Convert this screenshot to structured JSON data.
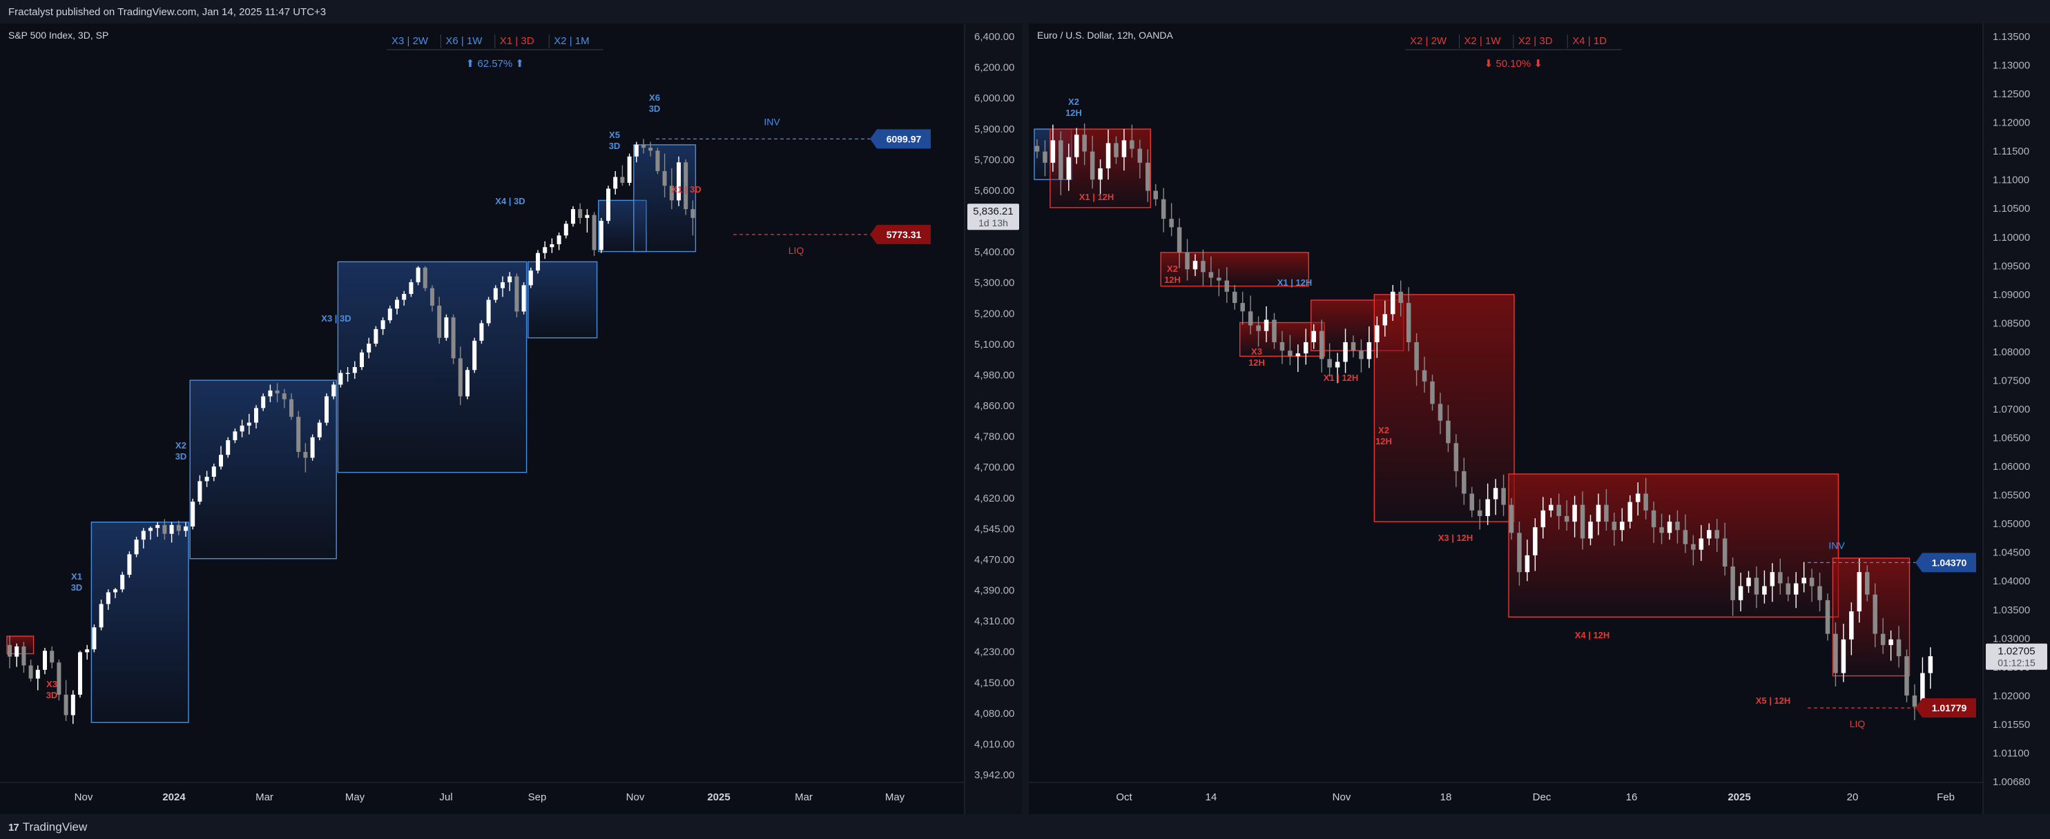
{
  "header": {
    "text": "Fractalyst published on TradingView.com, Jan 14, 2025 11:47 UTC+3"
  },
  "footer": {
    "brand": "TradingView",
    "logo_icon": "tradingview-logo-icon"
  },
  "colors": {
    "bg": "#0b0e17",
    "frame": "#131722",
    "bull": "#4a90e2",
    "bear": "#e53935",
    "navy_fill": "#1d3a6e",
    "red_fill": "#8a0f0f",
    "candle_up": "#ffffff",
    "candle_down": "#8a8a8a",
    "axis_text": "#b2b5be"
  },
  "chart_data": [
    {
      "type": "candlestick",
      "title": "S&P 500 Index, 3D, SP",
      "badges": [
        {
          "text": "X3 | 2W",
          "color": "#4a90e2"
        },
        {
          "text": "X6 | 1W",
          "color": "#4a90e2"
        },
        {
          "text": "X1 | 3D",
          "color": "#e53935"
        },
        {
          "text": "X2 | 1M",
          "color": "#4a90e2"
        }
      ],
      "summary": {
        "text": "⬆ 62.57% ⬆",
        "color": "#4a90e2"
      },
      "y_ticks": [
        "6,400.00",
        "6,200.00",
        "6,000.00",
        "5,900.00",
        "5,700.00",
        "5,600.00",
        "5,500.00",
        "5,400.00",
        "5,300.00",
        "5,200.00",
        "5,100.00",
        "4,980.00",
        "4,860.00",
        "4,780.00",
        "4,700.00",
        "4,620.00",
        "4,545.00",
        "4,470.00",
        "4,390.00",
        "4,310.00",
        "4,230.00",
        "4,150.00",
        "4,080.00",
        "4,010.00",
        "3,942.00"
      ],
      "x_ticks": [
        "Nov",
        "2024",
        "Mar",
        "May",
        "Jul",
        "Sep",
        "Nov",
        "2025",
        "Mar",
        "May"
      ],
      "price_tag": {
        "price": "5,836.21",
        "countdown": "1d 13h"
      },
      "levels": [
        {
          "label": "INV",
          "value": "6099.97",
          "color": "#4a90e2"
        },
        {
          "label": "LIQ",
          "value": "5773.31",
          "color": "#e53935"
        }
      ],
      "annotations": [
        {
          "text": "X3",
          "sub": "3D",
          "color": "#e53935"
        },
        {
          "text": "X1",
          "sub": "3D",
          "color": "#4a90e2"
        },
        {
          "text": "X2",
          "sub": "3D",
          "color": "#4a90e2"
        },
        {
          "text": "X3 | 3D",
          "color": "#4a90e2"
        },
        {
          "text": "X4 | 3D",
          "color": "#4a90e2"
        },
        {
          "text": "X5",
          "sub": "3D",
          "color": "#4a90e2"
        },
        {
          "text": "X6",
          "sub": "3D",
          "color": "#4a90e2"
        },
        {
          "text": "X1 | 3D",
          "color": "#e53935"
        }
      ],
      "candles": [
        [
          4370,
          4400,
          4290,
          4330
        ],
        [
          4330,
          4375,
          4295,
          4365
        ],
        [
          4365,
          4380,
          4275,
          4300
        ],
        [
          4300,
          4320,
          4245,
          4255
        ],
        [
          4255,
          4300,
          4215,
          4285
        ],
        [
          4285,
          4360,
          4270,
          4350
        ],
        [
          4350,
          4365,
          4290,
          4310
        ],
        [
          4310,
          4320,
          4180,
          4200
        ],
        [
          4200,
          4250,
          4110,
          4130
        ],
        [
          4130,
          4215,
          4100,
          4200
        ],
        [
          4200,
          4350,
          4190,
          4345
        ],
        [
          4345,
          4370,
          4320,
          4355
        ],
        [
          4355,
          4440,
          4345,
          4430
        ],
        [
          4430,
          4525,
          4420,
          4510
        ],
        [
          4510,
          4560,
          4490,
          4550
        ],
        [
          4550,
          4565,
          4530,
          4560
        ],
        [
          4560,
          4620,
          4550,
          4610
        ],
        [
          4610,
          4690,
          4600,
          4680
        ],
        [
          4680,
          4740,
          4670,
          4730
        ],
        [
          4730,
          4770,
          4700,
          4760
        ],
        [
          4760,
          4775,
          4730,
          4770
        ],
        [
          4770,
          4790,
          4740,
          4780
        ],
        [
          4780,
          4800,
          4730,
          4750
        ],
        [
          4750,
          4790,
          4720,
          4780
        ],
        [
          4780,
          4795,
          4745,
          4760
        ],
        [
          4760,
          4790,
          4740,
          4775
        ],
        [
          4775,
          4870,
          4765,
          4860
        ],
        [
          4860,
          4950,
          4850,
          4930
        ],
        [
          4930,
          4965,
          4910,
          4945
        ],
        [
          4945,
          4990,
          4930,
          4980
        ],
        [
          4980,
          5050,
          4970,
          5020
        ],
        [
          5020,
          5080,
          5010,
          5070
        ],
        [
          5070,
          5110,
          5060,
          5100
        ],
        [
          5100,
          5140,
          5080,
          5120
        ],
        [
          5120,
          5160,
          5090,
          5130
        ],
        [
          5130,
          5190,
          5110,
          5180
        ],
        [
          5180,
          5230,
          5170,
          5220
        ],
        [
          5220,
          5260,
          5200,
          5240
        ],
        [
          5240,
          5265,
          5200,
          5230
        ],
        [
          5230,
          5245,
          5180,
          5210
        ],
        [
          5210,
          5230,
          5140,
          5150
        ],
        [
          5150,
          5170,
          5010,
          5030
        ],
        [
          5030,
          5060,
          4960,
          5010
        ],
        [
          5010,
          5090,
          5000,
          5080
        ],
        [
          5080,
          5140,
          5070,
          5130
        ],
        [
          5130,
          5230,
          5120,
          5220
        ],
        [
          5220,
          5270,
          5210,
          5260
        ],
        [
          5260,
          5310,
          5250,
          5300
        ],
        [
          5300,
          5320,
          5270,
          5300
        ],
        [
          5300,
          5340,
          5280,
          5320
        ],
        [
          5320,
          5380,
          5310,
          5370
        ],
        [
          5370,
          5420,
          5350,
          5400
        ],
        [
          5400,
          5460,
          5390,
          5450
        ],
        [
          5450,
          5490,
          5430,
          5480
        ],
        [
          5480,
          5530,
          5470,
          5520
        ],
        [
          5520,
          5560,
          5500,
          5550
        ],
        [
          5550,
          5580,
          5530,
          5570
        ],
        [
          5570,
          5620,
          5560,
          5610
        ],
        [
          5610,
          5665,
          5600,
          5660
        ],
        [
          5660,
          5665,
          5580,
          5590
        ],
        [
          5590,
          5600,
          5510,
          5530
        ],
        [
          5530,
          5560,
          5400,
          5420
        ],
        [
          5420,
          5500,
          5410,
          5490
        ],
        [
          5490,
          5500,
          5330,
          5350
        ],
        [
          5350,
          5390,
          5190,
          5220
        ],
        [
          5220,
          5320,
          5210,
          5310
        ],
        [
          5310,
          5420,
          5300,
          5410
        ],
        [
          5410,
          5480,
          5400,
          5470
        ],
        [
          5470,
          5560,
          5460,
          5550
        ],
        [
          5550,
          5600,
          5540,
          5590
        ],
        [
          5590,
          5630,
          5560,
          5610
        ],
        [
          5610,
          5645,
          5580,
          5630
        ],
        [
          5630,
          5640,
          5490,
          5510
        ],
        [
          5510,
          5610,
          5500,
          5600
        ],
        [
          5600,
          5660,
          5590,
          5650
        ],
        [
          5650,
          5720,
          5640,
          5710
        ],
        [
          5710,
          5750,
          5690,
          5730
        ],
        [
          5730,
          5760,
          5710,
          5740
        ],
        [
          5740,
          5780,
          5720,
          5770
        ],
        [
          5770,
          5820,
          5760,
          5810
        ],
        [
          5810,
          5870,
          5800,
          5860
        ],
        [
          5860,
          5880,
          5810,
          5830
        ],
        [
          5830,
          5860,
          5780,
          5840
        ],
        [
          5840,
          5850,
          5700,
          5720
        ],
        [
          5720,
          5830,
          5710,
          5820
        ],
        [
          5820,
          5940,
          5810,
          5930
        ],
        [
          5930,
          5990,
          5910,
          5970
        ],
        [
          5970,
          6010,
          5940,
          5950
        ],
        [
          5950,
          6050,
          5940,
          6040
        ],
        [
          6040,
          6090,
          6020,
          6080
        ],
        [
          6080,
          6100,
          6050,
          6070
        ],
        [
          6070,
          6090,
          6040,
          6060
        ],
        [
          6060,
          6070,
          5980,
          5990
        ],
        [
          5990,
          6050,
          5900,
          5940
        ],
        [
          5940,
          6000,
          5860,
          5890
        ],
        [
          5890,
          6040,
          5870,
          6020
        ],
        [
          6020,
          6030,
          5840,
          5860
        ],
        [
          5860,
          5890,
          5770,
          5830
        ]
      ],
      "zones": [
        {
          "from": 0,
          "to": 3,
          "low": 4340,
          "high": 4400,
          "kind": "bear"
        },
        {
          "from": 12,
          "to": 25,
          "low": 4105,
          "high": 4790,
          "kind": "bull"
        },
        {
          "from": 26,
          "to": 46,
          "low": 4665,
          "high": 5275,
          "kind": "bull"
        },
        {
          "from": 47,
          "to": 73,
          "low": 4960,
          "high": 5680,
          "kind": "bull"
        },
        {
          "from": 74,
          "to": 83,
          "low": 5420,
          "high": 5680,
          "kind": "bull"
        },
        {
          "from": 84,
          "to": 90,
          "low": 5715,
          "high": 5890,
          "kind": "bull"
        },
        {
          "from": 89,
          "to": 97,
          "low": 5715,
          "high": 6080,
          "kind": "bull"
        }
      ]
    },
    {
      "type": "candlestick",
      "title": "Euro / U.S. Dollar, 12h, OANDA",
      "badges": [
        {
          "text": "X2 | 2W",
          "color": "#e53935"
        },
        {
          "text": "X2 | 1W",
          "color": "#e53935"
        },
        {
          "text": "X2 | 3D",
          "color": "#e53935"
        },
        {
          "text": "X4 | 1D",
          "color": "#e53935"
        }
      ],
      "summary": {
        "text": "⬇ 50.10% ⬇",
        "color": "#e53935"
      },
      "y_ticks": [
        "1.13500",
        "1.13000",
        "1.12500",
        "1.12000",
        "1.11500",
        "1.11000",
        "1.10500",
        "1.10000",
        "1.09500",
        "1.09000",
        "1.08500",
        "1.08000",
        "1.07500",
        "1.07000",
        "1.06500",
        "1.06000",
        "1.05500",
        "1.05000",
        "1.04500",
        "1.04000",
        "1.03500",
        "1.03000",
        "1.02500",
        "1.02000",
        "1.01550",
        "1.01100",
        "1.00680"
      ],
      "x_ticks": [
        "Oct",
        "14",
        "Nov",
        "18",
        "Dec",
        "16",
        "2025",
        "20",
        "Feb"
      ],
      "price_tag": {
        "price": "1.02705",
        "countdown": "01:12:15"
      },
      "levels": [
        {
          "label": "INV",
          "value": "1.04370",
          "color": "#4a90e2"
        },
        {
          "label": "LIQ",
          "value": "1.01779",
          "color": "#e53935"
        }
      ],
      "annotations": [
        {
          "text": "X2",
          "sub": "12H",
          "color": "#4a90e2"
        },
        {
          "text": "X1 | 12H",
          "color": "#e53935"
        },
        {
          "text": "X2",
          "sub": "12H",
          "color": "#e53935"
        },
        {
          "text": "X1 | 12H",
          "color": "#4a90e2"
        },
        {
          "text": "X3",
          "sub": "12H",
          "color": "#e53935"
        },
        {
          "text": "X1 | 12H",
          "color": "#e53935"
        },
        {
          "text": "X2",
          "sub": "12H",
          "color": "#e53935"
        },
        {
          "text": "X3 | 12H",
          "color": "#e53935"
        },
        {
          "text": "X4 | 12H",
          "color": "#e53935"
        },
        {
          "text": "X5 | 12H",
          "color": "#e53935"
        }
      ],
      "path": [
        1.117,
        1.115,
        1.119,
        1.112,
        1.116,
        1.12,
        1.117,
        1.112,
        1.114,
        1.1185,
        1.116,
        1.119,
        1.1175,
        1.115,
        1.11,
        1.1085,
        1.105,
        1.1035,
        1.099,
        1.096,
        1.0975,
        1.0955,
        1.0945,
        1.094,
        1.092,
        1.09,
        1.0885,
        1.086,
        1.085,
        1.087,
        1.083,
        1.0815,
        1.0805,
        1.081,
        1.083,
        1.085,
        1.08,
        1.0785,
        1.0795,
        1.083,
        1.0815,
        1.08,
        1.083,
        1.086,
        1.088,
        1.092,
        1.09,
        1.083,
        1.078,
        1.076,
        1.072,
        1.069,
        1.065,
        1.06,
        1.056,
        1.053,
        1.052,
        1.055,
        1.057,
        1.054,
        1.049,
        1.042,
        1.045,
        1.05,
        1.053,
        1.054,
        1.052,
        1.051,
        1.054,
        1.048,
        1.051,
        1.054,
        1.051,
        1.0495,
        1.051,
        1.0545,
        1.056,
        1.053,
        1.05,
        1.049,
        1.051,
        1.0495,
        1.047,
        1.046,
        1.048,
        1.0495,
        1.048,
        1.043,
        1.037,
        1.0395,
        1.041,
        1.038,
        1.0395,
        1.042,
        1.04,
        1.038,
        1.04,
        1.041,
        1.0395,
        1.037,
        1.031,
        1.024,
        1.03,
        1.035,
        1.042,
        1.038,
        1.031,
        1.029,
        1.03,
        1.027,
        1.02,
        1.018,
        1.024,
        1.027
      ],
      "zones": [
        {
          "from": 0,
          "to": 4,
          "low": 1.112,
          "high": 1.121,
          "kind": "bull"
        },
        {
          "from": 2,
          "to": 14,
          "low": 1.107,
          "high": 1.121,
          "kind": "bear"
        },
        {
          "from": 16,
          "to": 34,
          "low": 1.093,
          "high": 1.099,
          "kind": "bear"
        },
        {
          "from": 26,
          "to": 36,
          "low": 1.0805,
          "high": 1.0865,
          "kind": "bear"
        },
        {
          "from": 35,
          "to": 46,
          "low": 1.0815,
          "high": 1.0905,
          "kind": "bear"
        },
        {
          "from": 43,
          "to": 60,
          "low": 1.051,
          "high": 1.0915,
          "kind": "bear"
        },
        {
          "from": 60,
          "to": 101,
          "low": 1.034,
          "high": 1.0595,
          "kind": "bear"
        },
        {
          "from": 101,
          "to": 110,
          "low": 1.0235,
          "high": 1.0445,
          "kind": "bear"
        }
      ]
    }
  ]
}
